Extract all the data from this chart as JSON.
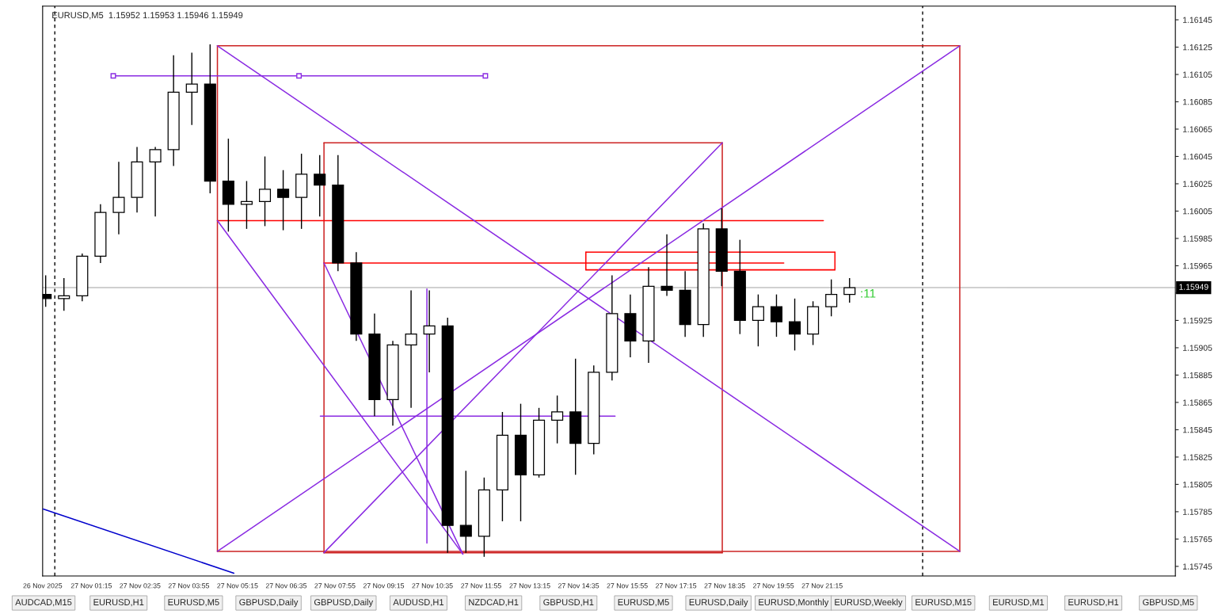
{
  "chart_data": {
    "type": "candlestick",
    "title": "EURUSD,M5  1.15952 1.15953 1.15946 1.15949",
    "x": [
      "2025-11-27T00:00",
      "2025-11-27T00:30",
      "2025-11-27T01:00",
      "2025-11-27T01:30",
      "2025-11-27T02:00",
      "2025-11-27T02:30",
      "2025-11-27T03:00",
      "2025-11-27T03:30",
      "2025-11-27T04:00",
      "2025-11-27T04:30",
      "2025-11-27T05:00",
      "2025-11-27T05:30",
      "2025-11-27T06:00",
      "2025-11-27T06:30",
      "2025-11-27T07:00",
      "2025-11-27T07:30",
      "2025-11-27T08:00",
      "2025-11-27T08:30",
      "2025-11-27T09:00",
      "2025-11-27T09:30",
      "2025-11-27T10:00",
      "2025-11-27T10:30",
      "2025-11-27T11:00",
      "2025-11-27T11:30",
      "2025-11-27T12:00",
      "2025-11-27T12:30",
      "2025-11-27T13:00",
      "2025-11-27T13:30",
      "2025-11-27T14:00",
      "2025-11-27T14:30",
      "2025-11-27T15:00",
      "2025-11-27T15:30",
      "2025-11-27T16:00",
      "2025-11-27T16:30",
      "2025-11-27T17:00",
      "2025-11-27T17:30",
      "2025-11-27T18:00",
      "2025-11-27T18:30",
      "2025-11-27T19:00",
      "2025-11-27T19:30",
      "2025-11-27T20:00",
      "2025-11-27T20:30",
      "2025-11-27T21:00",
      "2025-11-27T21:30",
      "2025-11-27T22:00"
    ],
    "ohlc": [
      [
        1.15944,
        1.15958,
        1.15935,
        1.15941
      ],
      [
        1.15941,
        1.15956,
        1.15932,
        1.15943
      ],
      [
        1.15943,
        1.15974,
        1.15939,
        1.15972
      ],
      [
        1.15972,
        1.1601,
        1.15967,
        1.16004
      ],
      [
        1.16004,
        1.16041,
        1.15988,
        1.16015
      ],
      [
        1.16015,
        1.16052,
        1.16004,
        1.16041
      ],
      [
        1.16041,
        1.16052,
        1.16001,
        1.1605
      ],
      [
        1.1605,
        1.16119,
        1.16038,
        1.16092
      ],
      [
        1.16092,
        1.16121,
        1.16068,
        1.16098
      ],
      [
        1.16098,
        1.16127,
        1.16018,
        1.16027
      ],
      [
        1.16027,
        1.16058,
        1.1599,
        1.1601
      ],
      [
        1.1601,
        1.16027,
        1.15992,
        1.16012
      ],
      [
        1.16012,
        1.16045,
        1.15994,
        1.16021
      ],
      [
        1.16021,
        1.16035,
        1.15991,
        1.16015
      ],
      [
        1.16015,
        1.16047,
        1.15992,
        1.16032
      ],
      [
        1.16032,
        1.16046,
        1.16001,
        1.16024
      ],
      [
        1.16024,
        1.16046,
        1.15961,
        1.15967
      ],
      [
        1.15967,
        1.15975,
        1.1591,
        1.15915
      ],
      [
        1.15915,
        1.1593,
        1.15855,
        1.15867
      ],
      [
        1.15867,
        1.1591,
        1.15848,
        1.15907
      ],
      [
        1.15907,
        1.15947,
        1.15861,
        1.15915
      ],
      [
        1.15915,
        1.15947,
        1.15887,
        1.15921
      ],
      [
        1.15921,
        1.15927,
        1.15755,
        1.15775
      ],
      [
        1.15775,
        1.15815,
        1.15755,
        1.15767
      ],
      [
        1.15767,
        1.1581,
        1.15752,
        1.15801
      ],
      [
        1.15801,
        1.15858,
        1.15778,
        1.15841
      ],
      [
        1.15841,
        1.15864,
        1.15778,
        1.15812
      ],
      [
        1.15812,
        1.15861,
        1.1581,
        1.15852
      ],
      [
        1.15852,
        1.1587,
        1.15835,
        1.15858
      ],
      [
        1.15858,
        1.15897,
        1.15812,
        1.15835
      ],
      [
        1.15835,
        1.15892,
        1.15827,
        1.15887
      ],
      [
        1.15887,
        1.15958,
        1.15881,
        1.1593
      ],
      [
        1.1593,
        1.15944,
        1.15898,
        1.1591
      ],
      [
        1.1591,
        1.15964,
        1.15894,
        1.1595
      ],
      [
        1.1595,
        1.15988,
        1.15943,
        1.15947
      ],
      [
        1.15947,
        1.15961,
        1.15913,
        1.15922
      ],
      [
        1.15922,
        1.15996,
        1.15913,
        1.15992
      ],
      [
        1.15992,
        1.16007,
        1.1595,
        1.15961
      ],
      [
        1.15961,
        1.15984,
        1.15915,
        1.15925
      ],
      [
        1.15925,
        1.15944,
        1.15906,
        1.15935
      ],
      [
        1.15935,
        1.15944,
        1.15913,
        1.15924
      ],
      [
        1.15924,
        1.15941,
        1.15903,
        1.15915
      ],
      [
        1.15915,
        1.15939,
        1.15907,
        1.15935
      ],
      [
        1.15935,
        1.15955,
        1.15928,
        1.15944
      ],
      [
        1.15944,
        1.15956,
        1.15938,
        1.15949
      ]
    ],
    "series": [
      {
        "type": "line",
        "color": "#cc2222",
        "x": [
          "2025-11-27T04:42",
          "2025-11-28T01:01"
        ],
        "values": [
          1.16126,
          1.16126
        ]
      },
      {
        "type": "line",
        "color": "#cc2222",
        "x": [
          "2025-11-27T04:42",
          "2025-11-28T01:01"
        ],
        "values": [
          1.15756,
          1.15756
        ]
      },
      {
        "type": "line",
        "color": "#cc2222",
        "x": [
          "2025-11-27T04:42",
          "2025-11-27T04:42"
        ],
        "values": [
          1.16126,
          1.15756
        ]
      },
      {
        "type": "line",
        "color": "#cc2222",
        "x": [
          "2025-11-28T01:01",
          "2025-11-28T01:01"
        ],
        "values": [
          1.16126,
          1.15756
        ]
      },
      {
        "type": "line",
        "color": "#cc2222",
        "x": [
          "2025-11-27T07:37",
          "2025-11-27T18:31"
        ],
        "values": [
          1.16055,
          1.16055
        ]
      },
      {
        "type": "line",
        "color": "#cc2222",
        "x": [
          "2025-11-27T07:37",
          "2025-11-27T18:31"
        ],
        "values": [
          1.15755,
          1.15755
        ]
      },
      {
        "type": "line",
        "color": "#cc2222",
        "x": [
          "2025-11-27T07:37",
          "2025-11-27T07:37"
        ],
        "values": [
          1.16055,
          1.15755
        ]
      },
      {
        "type": "line",
        "color": "#cc2222",
        "x": [
          "2025-11-27T18:31",
          "2025-11-27T18:31"
        ],
        "values": [
          1.16055,
          1.15755
        ]
      },
      {
        "type": "line",
        "color": "#ff0000",
        "x": [
          "2025-11-27T04:42",
          "2025-11-27T21:17"
        ],
        "values": [
          1.15998,
          1.15998
        ]
      },
      {
        "type": "line",
        "color": "#ff0000",
        "x": [
          "2025-11-27T07:37",
          "2025-11-27T20:12"
        ],
        "values": [
          1.15967,
          1.15967
        ]
      },
      {
        "type": "line",
        "color": "#ff0000",
        "x": [
          "2025-11-27T14:47",
          "2025-11-27T21:36"
        ],
        "values": [
          1.15975,
          1.15975
        ]
      },
      {
        "type": "line",
        "color": "#ff0000",
        "x": [
          "2025-11-27T14:47",
          "2025-11-27T21:36"
        ],
        "values": [
          1.15962,
          1.15962
        ]
      },
      {
        "type": "line",
        "color": "#ff0000",
        "x": [
          "2025-11-27T14:47",
          "2025-11-27T14:47"
        ],
        "values": [
          1.15975,
          1.15962
        ]
      },
      {
        "type": "line",
        "color": "#ff0000",
        "x": [
          "2025-11-27T21:36",
          "2025-11-27T21:36"
        ],
        "values": [
          1.15975,
          1.15962
        ]
      },
      {
        "type": "line",
        "color": "#8a2be2",
        "marker": "square",
        "x": [
          "2025-11-27T01:51",
          "2025-11-27T06:56",
          "2025-11-27T12:02"
        ],
        "values": [
          1.16104,
          1.16104,
          1.16104
        ]
      },
      {
        "type": "line",
        "color": "#8a2be2",
        "x": [
          "2025-11-27T07:31",
          "2025-11-27T15:35"
        ],
        "values": [
          1.15855,
          1.15855
        ]
      },
      {
        "type": "line",
        "color": "#8a2be2",
        "x": [
          "2025-11-27T10:26",
          "2025-11-27T10:26"
        ],
        "values": [
          1.15948,
          1.15762
        ]
      },
      {
        "type": "line",
        "color": "#8a2be2",
        "x": [
          "2025-11-27T04:42",
          "2025-11-28T01:01"
        ],
        "values": [
          1.16126,
          1.15756
        ]
      },
      {
        "type": "line",
        "color": "#8a2be2",
        "x": [
          "2025-11-27T04:42",
          "2025-11-28T01:01"
        ],
        "values": [
          1.15756,
          1.16126
        ]
      },
      {
        "type": "line",
        "color": "#8a2be2",
        "x": [
          "2025-11-27T07:37",
          "2025-11-27T18:31"
        ],
        "values": [
          1.15755,
          1.16055
        ]
      },
      {
        "type": "line",
        "color": "#8a2be2",
        "x": [
          "2025-11-27T04:42",
          "2025-11-27T11:25"
        ],
        "values": [
          1.15998,
          1.15754
        ]
      },
      {
        "type": "line",
        "color": "#8a2be2",
        "x": [
          "2025-11-27T07:37",
          "2025-11-27T11:25"
        ],
        "values": [
          1.15967,
          1.15754
        ]
      },
      {
        "type": "line",
        "color": "#0000cc",
        "x": [
          "2025-11-26T23:56",
          "2025-11-27T05:09"
        ],
        "values": [
          1.15787,
          1.1574
        ]
      }
    ],
    "ref_lines": [
      {
        "axis": "x",
        "value": "2025-11-27T00:15",
        "color": "#000000",
        "line_style": "dashed"
      },
      {
        "axis": "x",
        "value": "2025-11-28T00:00",
        "color": "#000000",
        "line_style": "dashed"
      },
      {
        "axis": "y",
        "value": 1.15949,
        "label": "1.15949",
        "color": "#c0c0c0"
      }
    ],
    "xlim": [
      "2025-11-26T23:55",
      "2025-11-28T06:55"
    ],
    "xticks": [
      {
        "value": "2025-11-26T23:55",
        "label": "26 Nov 2025"
      },
      {
        "value": "2025-11-27T01:15",
        "label": "27 Nov 01:15"
      },
      {
        "value": "2025-11-27T02:35",
        "label": "27 Nov 02:35"
      },
      {
        "value": "2025-11-27T03:55",
        "label": "27 Nov 03:55"
      },
      {
        "value": "2025-11-27T05:15",
        "label": "27 Nov 05:15"
      },
      {
        "value": "2025-11-27T06:35",
        "label": "27 Nov 06:35"
      },
      {
        "value": "2025-11-27T07:55",
        "label": "27 Nov 07:55"
      },
      {
        "value": "2025-11-27T09:15",
        "label": "27 Nov 09:15"
      },
      {
        "value": "2025-11-27T10:35",
        "label": "27 Nov 10:35"
      },
      {
        "value": "2025-11-27T11:55",
        "label": "27 Nov 11:55"
      },
      {
        "value": "2025-11-27T13:15",
        "label": "27 Nov 13:15"
      },
      {
        "value": "2025-11-27T14:35",
        "label": "27 Nov 14:35"
      },
      {
        "value": "2025-11-27T15:55",
        "label": "27 Nov 15:55"
      },
      {
        "value": "2025-11-27T17:15",
        "label": "27 Nov 17:15"
      },
      {
        "value": "2025-11-27T18:35",
        "label": "27 Nov 18:35"
      },
      {
        "value": "2025-11-27T19:55",
        "label": "27 Nov 19:55"
      },
      {
        "value": "2025-11-27T21:15",
        "label": "27 Nov 21:15"
      }
    ],
    "ylim": [
      1.15738,
      1.16155
    ],
    "yticks": [
      1.16145,
      1.16125,
      1.16105,
      1.16085,
      1.16065,
      1.16045,
      1.16025,
      1.16005,
      1.15985,
      1.15965,
      {
        "value": 1.15945,
        "label": null
      },
      1.15925,
      1.15905,
      1.15885,
      1.15865,
      1.15845,
      1.15825,
      1.15805,
      1.15785,
      1.15765,
      1.15745
    ],
    "annotations": [
      {
        "text": ":11",
        "x": "2025-11-27T22:10",
        "y": 1.15944
      },
      "AUDCAD,M15",
      "EURUSD,H1",
      "EURUSD,M5",
      "GBPUSD,Daily",
      "GBPUSD,Daily",
      "AUDUSD,H1",
      "NZDCAD,H1",
      "GBPUSD,H1",
      "EURUSD,M5",
      "EURUSD,Daily",
      "EURUSD,Monthly",
      "EURUSD,Weekly",
      "EURUSD,M15",
      "EURUSD,M1",
      "EURUSD,H1",
      "GBPUSD,M5"
    ]
  }
}
